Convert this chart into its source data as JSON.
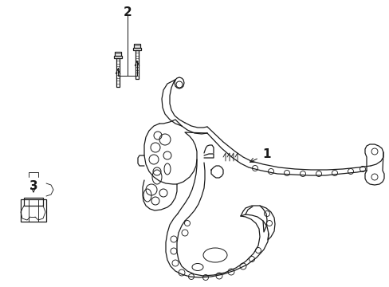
{
  "bg_color": "#ffffff",
  "line_color": "#1a1a1a",
  "lw": 0.9,
  "figsize": [
    4.89,
    3.6
  ],
  "dpi": 100,
  "labels": {
    "1": [
      0.595,
      0.555
    ],
    "2": [
      0.275,
      0.935
    ],
    "3": [
      0.058,
      0.63
    ]
  }
}
